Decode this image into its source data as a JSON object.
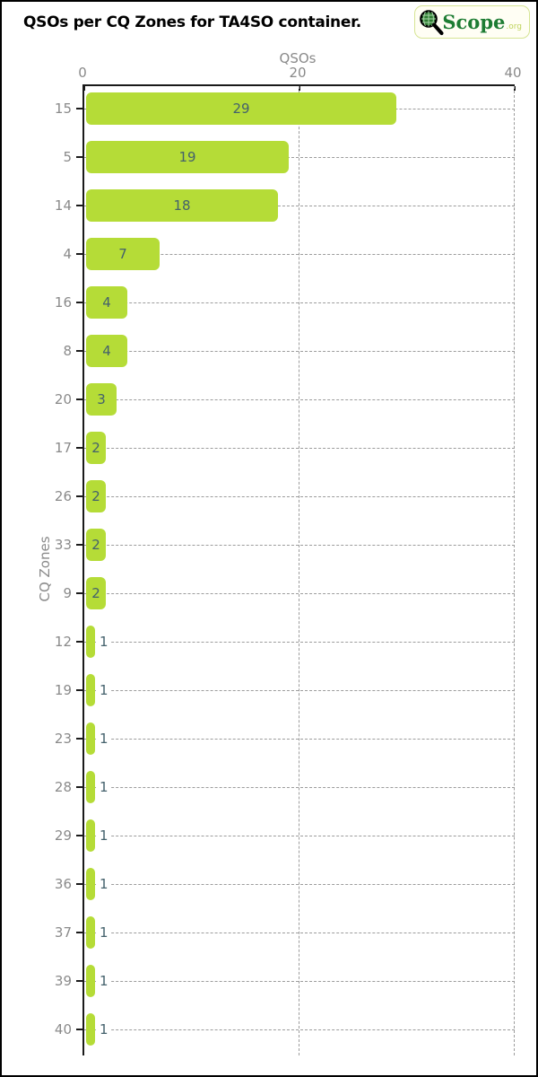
{
  "header": {
    "title": "QSOs per CQ Zones for TA4SO container.",
    "logo": {
      "text": "Scope",
      "suffix": ".org"
    }
  },
  "chart_data": {
    "type": "bar",
    "orientation": "horizontal",
    "title": "QSOs per CQ Zones for TA4SO container.",
    "xlabel": "QSOs",
    "ylabel": "CQ Zones",
    "xlim": [
      0,
      40
    ],
    "xticks": [
      0,
      20,
      40
    ],
    "grid": true,
    "categories": [
      "15",
      "5",
      "14",
      "4",
      "16",
      "8",
      "20",
      "17",
      "26",
      "33",
      "9",
      "12",
      "19",
      "23",
      "28",
      "29",
      "36",
      "37",
      "39",
      "40"
    ],
    "values": [
      29,
      19,
      18,
      7,
      4,
      4,
      3,
      2,
      2,
      2,
      2,
      1,
      1,
      1,
      1,
      1,
      1,
      1,
      1,
      1
    ],
    "colors": {
      "bar": "#b5dc37",
      "value_label": "#44616c",
      "axis_line": "#1a1a1a",
      "tick_label": "#8a8a8a",
      "gridline": "#9c9c9c"
    }
  }
}
